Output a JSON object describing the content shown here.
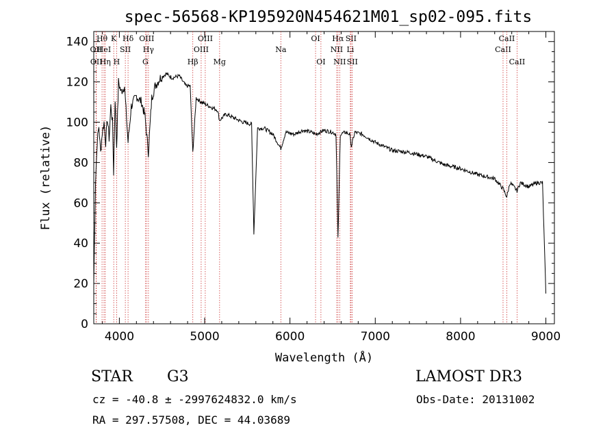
{
  "chart_data": {
    "type": "line",
    "title": "spec-56568-KP195920N454621M01_sp02-095.fits",
    "xlabel": "Wavelength (Å)",
    "ylabel": "Flux (relative)",
    "xlim": [
      3700,
      9100
    ],
    "ylim": [
      0,
      145
    ],
    "xticks": [
      4000,
      5000,
      6000,
      7000,
      8000,
      9000
    ],
    "yticks": [
      0,
      20,
      40,
      60,
      80,
      100,
      120,
      140
    ],
    "grid": false,
    "series": [
      {
        "name": "flux",
        "x": [
          3700,
          3720,
          3740,
          3760,
          3780,
          3800,
          3820,
          3840,
          3860,
          3880,
          3900,
          3920,
          3933,
          3950,
          3968,
          3990,
          4020,
          4060,
          4102,
          4140,
          4200,
          4260,
          4300,
          4340,
          4380,
          4420,
          4480,
          4550,
          4620,
          4700,
          4780,
          4830,
          4861,
          4900,
          4960,
          5050,
          5150,
          5175,
          5250,
          5350,
          5450,
          5550,
          5577,
          5620,
          5700,
          5800,
          5893,
          5950,
          6050,
          6150,
          6250,
          6300,
          6400,
          6500,
          6540,
          6563,
          6590,
          6650,
          6700,
          6720,
          6760,
          6850,
          7000,
          7200,
          7400,
          7600,
          7800,
          8000,
          8200,
          8400,
          8498,
          8542,
          8580,
          8662,
          8700,
          8800,
          8900,
          8960,
          9000
        ],
        "values": [
          20,
          70,
          90,
          98,
          85,
          95,
          100,
          90,
          102,
          92,
          108,
          100,
          75,
          112,
          88,
          120,
          115,
          118,
          90,
          108,
          113,
          110,
          103,
          85,
          112,
          118,
          122,
          124,
          122,
          123,
          118,
          118,
          85,
          112,
          110,
          108,
          106,
          101,
          104,
          102,
          100,
          99,
          45,
          97,
          97,
          94,
          87,
          95,
          94,
          96,
          95,
          94,
          96,
          95,
          94,
          42,
          94,
          95,
          94,
          88,
          95,
          94,
          90,
          86,
          85,
          83,
          79,
          77,
          74,
          72,
          67,
          63,
          70,
          66,
          70,
          68,
          70,
          70,
          15
        ]
      }
    ],
    "lines": [
      {
        "label": "OII",
        "x": 3727,
        "row": 2
      },
      {
        "label": "OII",
        "x": 3730,
        "row": 3
      },
      {
        "label": "Hθ",
        "x": 3797,
        "row": 1
      },
      {
        "label": "HeI",
        "x": 3820,
        "row": 2
      },
      {
        "label": "Hη",
        "x": 3835,
        "row": 3
      },
      {
        "label": "K",
        "x": 3934,
        "row": 1
      },
      {
        "label": "H",
        "x": 3968,
        "row": 3
      },
      {
        "label": "SII",
        "x": 4070,
        "row": 2
      },
      {
        "label": "Hδ",
        "x": 4102,
        "row": 1
      },
      {
        "label": "OIII",
        "x": 4320,
        "row": 1
      },
      {
        "label": "Hγ",
        "x": 4341,
        "row": 2
      },
      {
        "label": "G",
        "x": 4305,
        "row": 3
      },
      {
        "label": "Hβ",
        "x": 4861,
        "row": 3
      },
      {
        "label": "OIII",
        "x": 4959,
        "row": 2
      },
      {
        "label": "OIII",
        "x": 5007,
        "row": 1
      },
      {
        "label": "Mg",
        "x": 5175,
        "row": 3
      },
      {
        "label": "Na",
        "x": 5893,
        "row": 2
      },
      {
        "label": "OI",
        "x": 6300,
        "row": 1
      },
      {
        "label": "OI",
        "x": 6363,
        "row": 3
      },
      {
        "label": "Hα",
        "x": 6563,
        "row": 1
      },
      {
        "label": "NII",
        "x": 6548,
        "row": 2
      },
      {
        "label": "NII",
        "x": 6583,
        "row": 3
      },
      {
        "label": "SII",
        "x": 6716,
        "row": 1
      },
      {
        "label": "Li",
        "x": 6708,
        "row": 2
      },
      {
        "label": "SII",
        "x": 6731,
        "row": 3
      },
      {
        "label": "CaII",
        "x": 8498,
        "row": 2
      },
      {
        "label": "CaII",
        "x": 8542,
        "row": 1
      },
      {
        "label": "CaII",
        "x": 8662,
        "row": 3
      }
    ]
  },
  "info": {
    "class": "STAR",
    "subclass": "G3",
    "survey": "LAMOST DR3",
    "cz": "cz = -40.8 ± -2997624832.0 km/s",
    "obs_date": "Obs-Date: 20131002",
    "radec": "RA = 297.57508, DEC =  44.03689"
  }
}
